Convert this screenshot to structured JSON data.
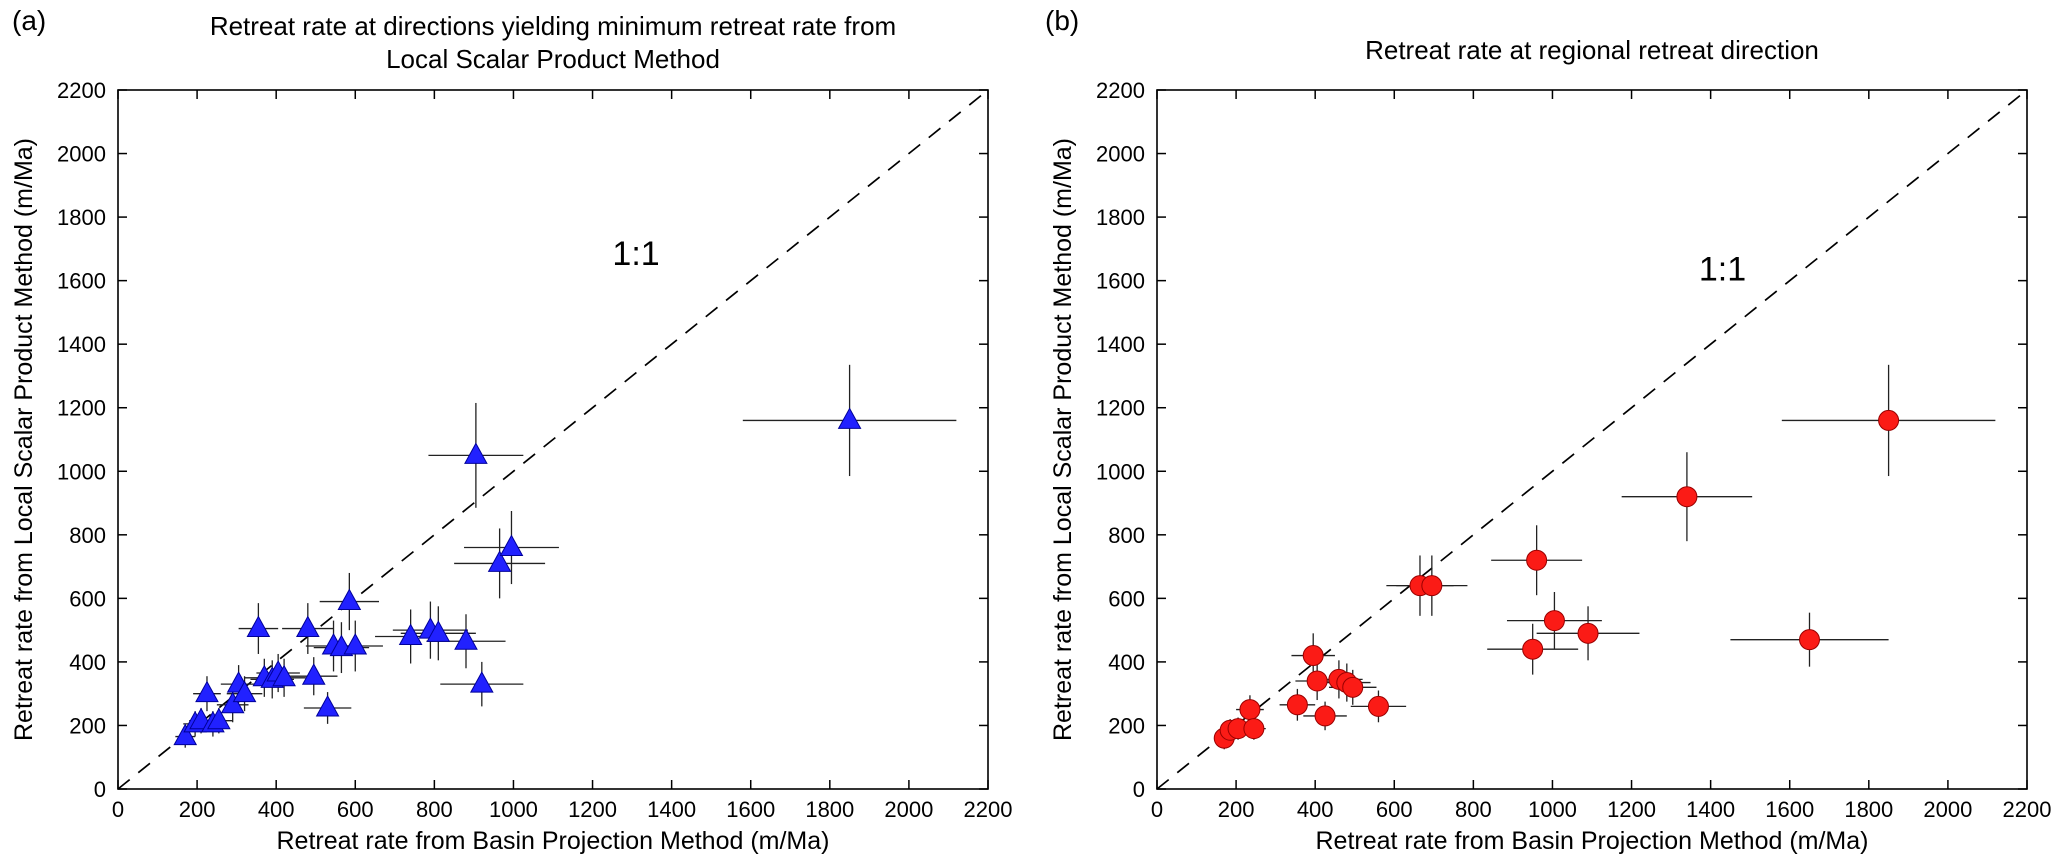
{
  "figure": {
    "panels": [
      {
        "panel_label": "(a)"
      },
      {
        "panel_label": "(b)"
      }
    ]
  },
  "chart_data": [
    {
      "type": "scatter",
      "marker": "triangle",
      "marker_color": "#2121ff",
      "marker_edge_color": "#000099",
      "errorbar_color": "#222222",
      "title": "Retreat rate at directions yielding minimum retreat rate from\nLocal Scalar Product Method",
      "xlabel": "Retreat rate from Basin Projection Method (m/Ma)",
      "ylabel": "Retreat rate from Local Scalar Product Method (m/Ma)",
      "xlim": [
        0,
        2200
      ],
      "ylim": [
        0,
        2200
      ],
      "ticks": [
        0,
        200,
        400,
        600,
        800,
        1000,
        1200,
        1400,
        1600,
        1800,
        2000,
        2200
      ],
      "grid": false,
      "reference_line": {
        "type": "1:1",
        "style": "dashed",
        "color": "#000000"
      },
      "annotation": {
        "text": "1:1",
        "x": 1310,
        "y": 1650
      },
      "points": [
        {
          "x": 170,
          "y": 165,
          "xerr": 25,
          "yerr": 35
        },
        {
          "x": 195,
          "y": 205,
          "xerr": 30,
          "yerr": 40
        },
        {
          "x": 210,
          "y": 215,
          "xerr": 30,
          "yerr": 40
        },
        {
          "x": 225,
          "y": 300,
          "xerr": 35,
          "yerr": 55
        },
        {
          "x": 240,
          "y": 205,
          "xerr": 30,
          "yerr": 40
        },
        {
          "x": 255,
          "y": 215,
          "xerr": 35,
          "yerr": 40
        },
        {
          "x": 290,
          "y": 265,
          "xerr": 40,
          "yerr": 55
        },
        {
          "x": 305,
          "y": 330,
          "xerr": 45,
          "yerr": 60
        },
        {
          "x": 320,
          "y": 300,
          "xerr": 45,
          "yerr": 55
        },
        {
          "x": 355,
          "y": 505,
          "xerr": 50,
          "yerr": 80
        },
        {
          "x": 370,
          "y": 350,
          "xerr": 50,
          "yerr": 60
        },
        {
          "x": 390,
          "y": 345,
          "xerr": 55,
          "yerr": 60
        },
        {
          "x": 405,
          "y": 365,
          "xerr": 55,
          "yerr": 60
        },
        {
          "x": 420,
          "y": 350,
          "xerr": 55,
          "yerr": 60
        },
        {
          "x": 480,
          "y": 505,
          "xerr": 65,
          "yerr": 80
        },
        {
          "x": 495,
          "y": 355,
          "xerr": 60,
          "yerr": 60
        },
        {
          "x": 530,
          "y": 255,
          "xerr": 60,
          "yerr": 50
        },
        {
          "x": 545,
          "y": 450,
          "xerr": 70,
          "yerr": 80
        },
        {
          "x": 565,
          "y": 445,
          "xerr": 70,
          "yerr": 80
        },
        {
          "x": 585,
          "y": 590,
          "xerr": 75,
          "yerr": 90
        },
        {
          "x": 600,
          "y": 450,
          "xerr": 70,
          "yerr": 80
        },
        {
          "x": 740,
          "y": 480,
          "xerr": 90,
          "yerr": 85
        },
        {
          "x": 790,
          "y": 500,
          "xerr": 95,
          "yerr": 90
        },
        {
          "x": 810,
          "y": 490,
          "xerr": 95,
          "yerr": 85
        },
        {
          "x": 880,
          "y": 465,
          "xerr": 100,
          "yerr": 85
        },
        {
          "x": 905,
          "y": 1050,
          "xerr": 120,
          "yerr": 165
        },
        {
          "x": 920,
          "y": 330,
          "xerr": 105,
          "yerr": 70
        },
        {
          "x": 965,
          "y": 710,
          "xerr": 115,
          "yerr": 110
        },
        {
          "x": 995,
          "y": 760,
          "xerr": 120,
          "yerr": 115
        },
        {
          "x": 1850,
          "y": 1160,
          "xerr": 270,
          "yerr": 175
        }
      ]
    },
    {
      "type": "scatter",
      "marker": "circle",
      "marker_color": "#fb1b16",
      "marker_edge_color": "#990000",
      "errorbar_color": "#222222",
      "title": "Retreat rate at regional retreat direction",
      "xlabel": "Retreat rate from Basin Projection Method (m/Ma)",
      "ylabel": "Retreat rate from Local Scalar Product Method (m/Ma)",
      "xlim": [
        0,
        2200
      ],
      "ylim": [
        0,
        2200
      ],
      "ticks": [
        0,
        200,
        400,
        600,
        800,
        1000,
        1200,
        1400,
        1600,
        1800,
        2000,
        2200
      ],
      "grid": false,
      "reference_line": {
        "type": "1:1",
        "style": "dashed",
        "color": "#000000"
      },
      "annotation": {
        "text": "1:1",
        "x": 1430,
        "y": 1600
      },
      "points": [
        {
          "x": 170,
          "y": 160,
          "xerr": 25,
          "yerr": 35
        },
        {
          "x": 185,
          "y": 185,
          "xerr": 25,
          "yerr": 35
        },
        {
          "x": 205,
          "y": 190,
          "xerr": 30,
          "yerr": 35
        },
        {
          "x": 235,
          "y": 250,
          "xerr": 35,
          "yerr": 45
        },
        {
          "x": 245,
          "y": 190,
          "xerr": 30,
          "yerr": 35
        },
        {
          "x": 355,
          "y": 265,
          "xerr": 45,
          "yerr": 50
        },
        {
          "x": 395,
          "y": 420,
          "xerr": 55,
          "yerr": 70
        },
        {
          "x": 405,
          "y": 340,
          "xerr": 55,
          "yerr": 60
        },
        {
          "x": 425,
          "y": 230,
          "xerr": 55,
          "yerr": 45
        },
        {
          "x": 460,
          "y": 345,
          "xerr": 60,
          "yerr": 60
        },
        {
          "x": 480,
          "y": 335,
          "xerr": 60,
          "yerr": 60
        },
        {
          "x": 495,
          "y": 320,
          "xerr": 60,
          "yerr": 55
        },
        {
          "x": 560,
          "y": 260,
          "xerr": 70,
          "yerr": 50
        },
        {
          "x": 665,
          "y": 640,
          "xerr": 85,
          "yerr": 95
        },
        {
          "x": 695,
          "y": 640,
          "xerr": 90,
          "yerr": 95
        },
        {
          "x": 950,
          "y": 440,
          "xerr": 115,
          "yerr": 80
        },
        {
          "x": 960,
          "y": 720,
          "xerr": 115,
          "yerr": 110
        },
        {
          "x": 1005,
          "y": 530,
          "xerr": 120,
          "yerr": 90
        },
        {
          "x": 1090,
          "y": 490,
          "xerr": 130,
          "yerr": 85
        },
        {
          "x": 1340,
          "y": 920,
          "xerr": 165,
          "yerr": 140
        },
        {
          "x": 1650,
          "y": 470,
          "xerr": 200,
          "yerr": 85
        },
        {
          "x": 1850,
          "y": 1160,
          "xerr": 270,
          "yerr": 175
        }
      ]
    }
  ]
}
